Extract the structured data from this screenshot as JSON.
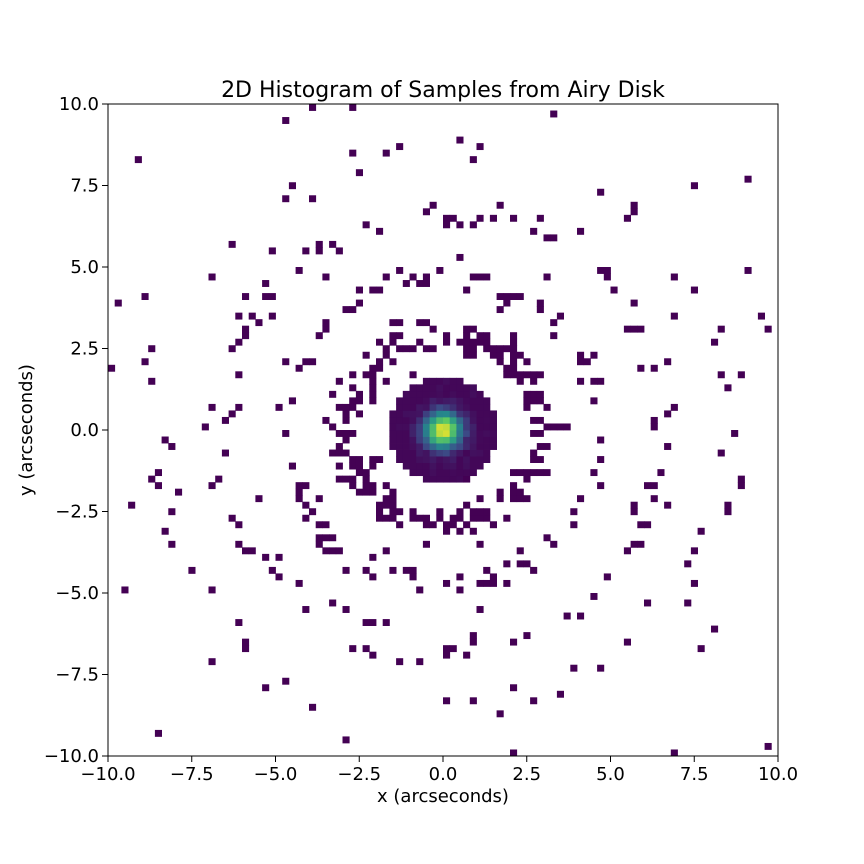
{
  "chart_data": {
    "type": "heatmap",
    "title": "2D Histogram of Samples from Airy Disk",
    "xlabel": "x (arcseconds)",
    "ylabel": "y (arcseconds)",
    "xlim": [
      -10,
      10
    ],
    "ylim": [
      -10,
      10
    ],
    "bins": 100,
    "xticks": [
      -10,
      -7.5,
      -5,
      -2.5,
      0,
      2.5,
      5,
      7.5,
      10
    ],
    "yticks": [
      -10,
      -7.5,
      -5,
      -2.5,
      0,
      2.5,
      5,
      7.5,
      10
    ],
    "xtick_labels": [
      "−10.0",
      "−7.5",
      "−5.0",
      "−2.5",
      "0.0",
      "2.5",
      "5.0",
      "7.5",
      "10.0"
    ],
    "ytick_labels": [
      "−10.0",
      "−7.5",
      "−5.0",
      "−2.5",
      "0.0",
      "2.5",
      "5.0",
      "7.5",
      "10.0"
    ],
    "colormap": "viridis",
    "colors": {
      "low": "#440154",
      "mid_low": "#3b528b",
      "mid": "#21918c",
      "mid_high": "#5ec962",
      "high": "#fde725"
    },
    "grid": false,
    "legend": "none",
    "pattern": "Airy pattern: bright central peak (max at 0,0) within radius ~1.6, ring bands at radii ~2.5–3.3, ~4.5–5, ~6.7 and ~8.5, sparse single-count bins elsewhere"
  }
}
